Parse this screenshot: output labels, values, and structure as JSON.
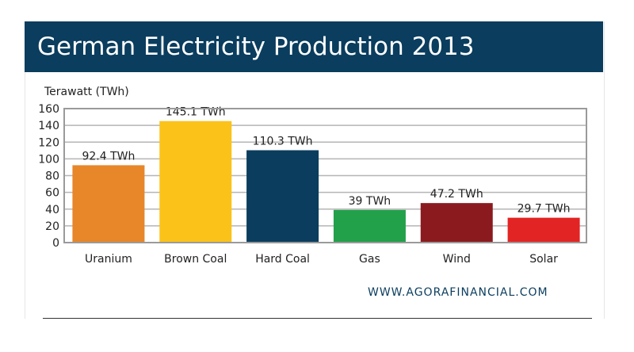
{
  "header": {
    "title": "German Electricity Production 2013"
  },
  "source_text": "WWW.AGORAFINANCIAL.COM",
  "chart_data": {
    "type": "bar",
    "title": "German Electricity Production 2013",
    "ylabel": "Terawatt (TWh)",
    "xlabel": "",
    "ylim": [
      0,
      160
    ],
    "yticks": [
      0,
      20,
      40,
      60,
      80,
      100,
      120,
      140,
      160
    ],
    "grid": true,
    "categories": [
      "Uranium",
      "Brown Coal",
      "Hard Coal",
      "Gas",
      "Wind",
      "Solar"
    ],
    "values": [
      92.4,
      145.1,
      110.3,
      39,
      47.2,
      29.7
    ],
    "data_labels": [
      "92.4 TWh",
      "145.1 TWh",
      "110.3 TWh",
      "39 TWh",
      "47.2 TWh",
      "29.7 TWh"
    ],
    "colors": [
      "#e8862a",
      "#fbc219",
      "#0a3d5e",
      "#22a04a",
      "#8b1a1e",
      "#e32424"
    ]
  }
}
